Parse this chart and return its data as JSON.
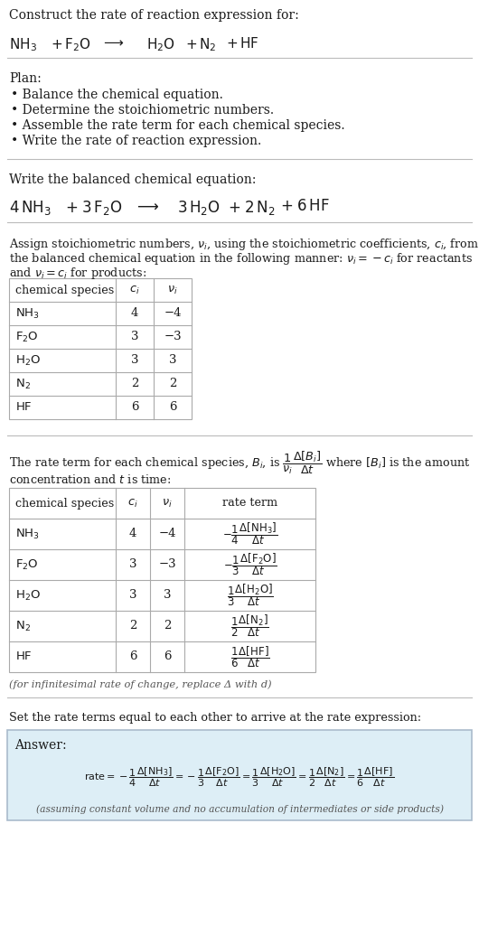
{
  "bg_color": "#ffffff",
  "text_color": "#1a1a1a",
  "gray_text": "#555555",
  "table_border": "#aaaaaa",
  "answer_bg": "#ddeef6",
  "answer_border": "#aabbcc",
  "plan_items": [
    "• Balance the chemical equation.",
    "• Determine the stoichiometric numbers.",
    "• Assemble the rate term for each chemical species.",
    "• Write the rate of reaction expression."
  ],
  "chem_labels_math": [
    "$\\mathrm{NH_3}$",
    "$\\mathrm{F_2O}$",
    "$\\mathrm{H_2O}$",
    "$\\mathrm{N_2}$",
    "$\\mathrm{HF}$"
  ],
  "ci_vals": [
    "4",
    "3",
    "3",
    "2",
    "6"
  ],
  "ni_vals": [
    "−4",
    "−3",
    "3",
    "2",
    "6"
  ],
  "infinitesimal_note": "(for infinitesimal rate of change, replace Δ with d)",
  "set_equal_text": "Set the rate terms equal to each other to arrive at the rate expression:",
  "answer_note": "(assuming constant volume and no accumulation of intermediates or side products)"
}
